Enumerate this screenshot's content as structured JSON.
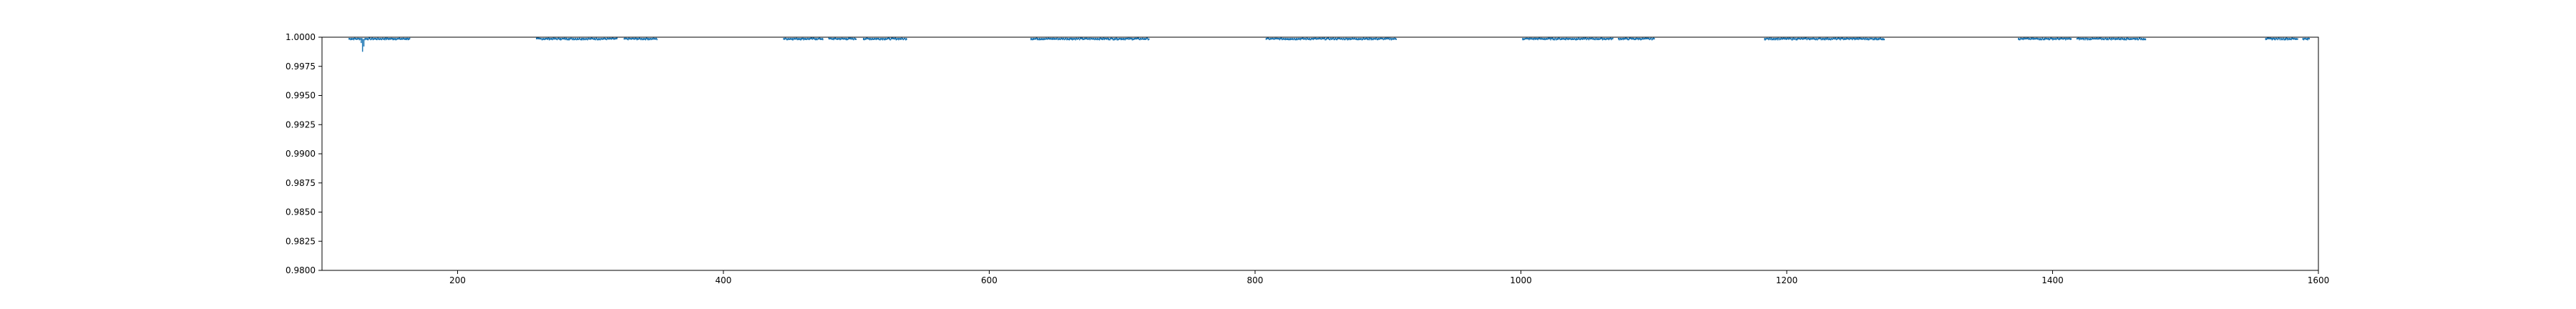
{
  "chart_data": {
    "type": "scatter",
    "title": "",
    "xlabel": "",
    "ylabel": "",
    "xlim": [
      98,
      1600
    ],
    "ylim": [
      0.98,
      1.0
    ],
    "x_ticks": [
      200,
      400,
      600,
      800,
      1000,
      1200,
      1400,
      1600
    ],
    "x_tick_labels": [
      "200",
      "400",
      "600",
      "800",
      "1000",
      "1200",
      "1400",
      "1600"
    ],
    "y_ticks": [
      0.98,
      0.9825,
      0.985,
      0.9875,
      0.99,
      0.9925,
      0.995,
      0.9975,
      1.0
    ],
    "y_tick_labels": [
      "0.9800",
      "0.9825",
      "0.9850",
      "0.9875",
      "0.9900",
      "0.9925",
      "0.9950",
      "0.9975",
      "1.0000"
    ],
    "grid": false,
    "marker_color": "#1f77b4",
    "series": [
      {
        "segments": [
          {
            "x_start": 118,
            "x_end": 128
          },
          {
            "x_start": 130,
            "x_end": 164
          },
          {
            "x_start": 259,
            "x_end": 320
          },
          {
            "x_start": 325,
            "x_end": 350
          },
          {
            "x_start": 445,
            "x_end": 475
          },
          {
            "x_start": 479,
            "x_end": 500
          },
          {
            "x_start": 505,
            "x_end": 538
          },
          {
            "x_start": 631,
            "x_end": 720
          },
          {
            "x_start": 808,
            "x_end": 906
          },
          {
            "x_start": 1001,
            "x_end": 1069
          },
          {
            "x_start": 1073,
            "x_end": 1100
          },
          {
            "x_start": 1183,
            "x_end": 1273
          },
          {
            "x_start": 1374,
            "x_end": 1414
          },
          {
            "x_start": 1418,
            "x_end": 1470
          },
          {
            "x_start": 1560,
            "x_end": 1584
          },
          {
            "x_start": 1588,
            "x_end": 1593
          }
        ],
        "typical_y": 0.99985,
        "outliers": [
          {
            "x": 128.5,
            "y": 0.99875
          },
          {
            "x": 129.5,
            "y": 0.9992
          },
          {
            "x": 127.5,
            "y": 0.9995
          }
        ]
      }
    ]
  }
}
